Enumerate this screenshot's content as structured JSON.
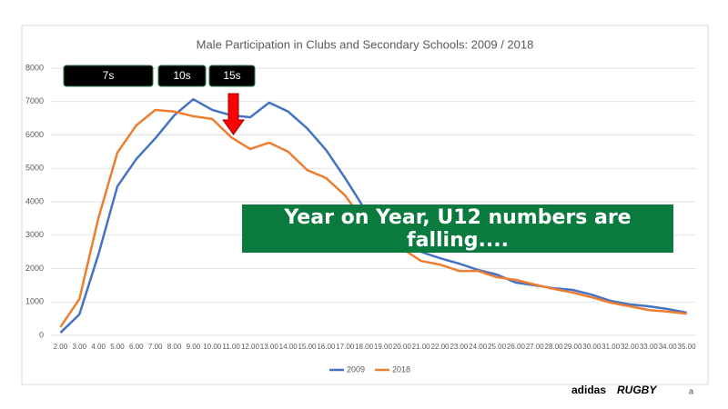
{
  "chart_data": {
    "type": "line",
    "title": "Male Participation in Clubs and Secondary Schools: 2009 / 2018",
    "categories": [
      "2.00",
      "3.00",
      "4.00",
      "5.00",
      "6.00",
      "7.00",
      "8.00",
      "9.00",
      "10.00",
      "11.00",
      "12.00",
      "13.00",
      "14.00",
      "15.00",
      "16.00",
      "17.00",
      "18.00",
      "19.00",
      "20.00",
      "21.00",
      "22.00",
      "23.00",
      "24.00",
      "25.00",
      "26.00",
      "27.00",
      "28.00",
      "29.00",
      "30.00",
      "31.00",
      "32.00",
      "33.00",
      "34.00",
      "35.00"
    ],
    "series": [
      {
        "name": "2009",
        "color": "#4472c4",
        "values": [
          80,
          630,
          2420,
          4460,
          5280,
          5900,
          6590,
          7070,
          6750,
          6590,
          6530,
          6970,
          6700,
          6200,
          5550,
          4710,
          3810,
          3200,
          2750,
          2500,
          2310,
          2150,
          1960,
          1820,
          1580,
          1500,
          1410,
          1360,
          1220,
          1030,
          930,
          870,
          790,
          680
        ]
      },
      {
        "name": "2018",
        "color": "#ed7d31",
        "values": [
          250,
          1090,
          3510,
          5470,
          6290,
          6750,
          6700,
          6560,
          6480,
          5930,
          5580,
          5770,
          5500,
          4950,
          4710,
          4190,
          3400,
          2900,
          2600,
          2230,
          2120,
          1930,
          1930,
          1740,
          1660,
          1520,
          1390,
          1280,
          1140,
          980,
          870,
          760,
          710,
          650
        ]
      }
    ],
    "ylim": [
      0,
      8000
    ],
    "yticks": [
      0,
      1000,
      2000,
      3000,
      4000,
      5000,
      6000,
      7000,
      8000
    ],
    "grid": true,
    "legend": "bottom",
    "annotations": [
      "7s",
      "10s",
      "15s"
    ],
    "callout": "Year on Year, U12 numbers are falling...."
  },
  "footer": {
    "brand": "adidas",
    "logo": "RUGBY",
    "page": "a"
  }
}
